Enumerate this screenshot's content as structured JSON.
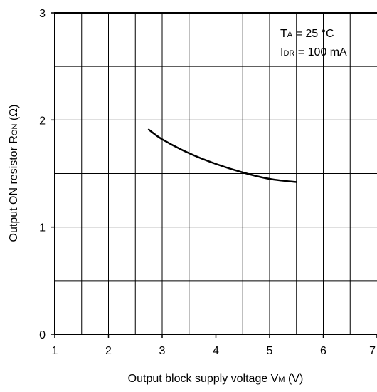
{
  "chart_data": {
    "type": "line",
    "x_ticks": [
      "1",
      "2",
      "3",
      "4",
      "5",
      "6",
      "7"
    ],
    "y_ticks": [
      "0",
      "1",
      "2",
      "3"
    ],
    "xlim": [
      1,
      7
    ],
    "ylim": [
      0,
      3
    ],
    "x_minor_step": 0.5,
    "y_minor_step": 0.5,
    "grid": true,
    "xlabel": {
      "main": "Output block supply voltage V",
      "sub": "M",
      "unit": " (V)"
    },
    "ylabel": {
      "main": "Output ON resistor R",
      "sub": "ON",
      "unit": " (Ω)"
    },
    "annotations": [
      {
        "main": "T",
        "sub": "A",
        "rest": " = 25 °C"
      },
      {
        "main": "I",
        "sub": "DR",
        "rest": " = 100 mA"
      }
    ],
    "series": [
      {
        "x": [
          2.75,
          3.0,
          3.5,
          4.0,
          4.5,
          5.0,
          5.5
        ],
        "y": [
          1.91,
          1.82,
          1.69,
          1.59,
          1.51,
          1.45,
          1.42
        ]
      }
    ]
  }
}
